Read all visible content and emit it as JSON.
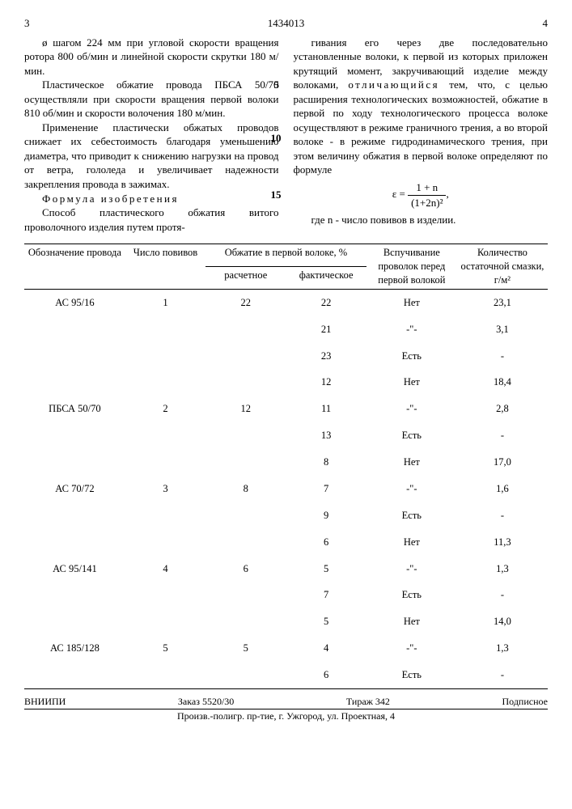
{
  "header": {
    "page_left": "3",
    "doc_number": "1434013",
    "page_right": "4"
  },
  "left_col": {
    "p1": "ø шагом 224 мм при угловой скорости вращения ротора 800 об/мин и линейной скорости скрутки 180 м/мин.",
    "p2": "Пластическое обжатие провода ПБСА 50/70 осуществляли при скорости вращения первой волоки 810 об/мин и скорости волочения 180 м/мин.",
    "p3": "Применение пластически обжатых проводов снижает их себестоимость благодаря уменьшению диаметра, что приводит к снижению нагрузки на провод от ветра, гололеда и увеличивает надежности закрепления провода в зажимах.",
    "formula_title": "Формула изобретения",
    "p4": "Способ пластического обжатия витого проволочного изделия путем протя-"
  },
  "right_col": {
    "p1a": "гивания его через две последовательно установленные волоки, к первой из которых приложен крутящий момент, закручивающий изделие между волоками, ",
    "p1_spaced": "отличающийся",
    "p1b": " тем, что, с целью расширения технологических возможностей, обжатие в первой по ходу технологического процесса волоке осуществляют в режиме граничного трения, а во второй волоке - в режиме гидродинамического трения, при этом величину обжатия в первой волоке определяют по формуле",
    "formula_lhs": "ε =",
    "formula_num": "1 + n",
    "formula_den": "(1+2n)²",
    "formula_tail": ",",
    "p2": "где n - число повивов в изделии."
  },
  "markers": {
    "m5": "5",
    "m10": "10",
    "m15": "15"
  },
  "table": {
    "hdr": {
      "c1": "Обозначение провода",
      "c2": "Число повивов",
      "c3": "Обжатие в первой волоке, %",
      "c3a": "расчетное",
      "c3b": "фактическое",
      "c4": "Вспучивание проволок перед первой волокой",
      "c5": "Количество остаточной смазки, г/м²"
    },
    "rows": [
      {
        "a": "АС 95/16",
        "b": "1",
        "c": "22",
        "d": "22",
        "e": "Нет",
        "f": "23,1"
      },
      {
        "a": "",
        "b": "",
        "c": "",
        "d": "21",
        "e": "-\"-",
        "f": "3,1"
      },
      {
        "a": "",
        "b": "",
        "c": "",
        "d": "23",
        "e": "Есть",
        "f": "-"
      },
      {
        "a": "",
        "b": "",
        "c": "",
        "d": "12",
        "e": "Нет",
        "f": "18,4"
      },
      {
        "a": "ПБСА 50/70",
        "b": "2",
        "c": "12",
        "d": "11",
        "e": "-\"-",
        "f": "2,8"
      },
      {
        "a": "",
        "b": "",
        "c": "",
        "d": "13",
        "e": "Есть",
        "f": "-"
      },
      {
        "a": "",
        "b": "",
        "c": "",
        "d": "8",
        "e": "Нет",
        "f": "17,0"
      },
      {
        "a": "АС 70/72",
        "b": "3",
        "c": "8",
        "d": "7",
        "e": "-\"-",
        "f": "1,6"
      },
      {
        "a": "",
        "b": "",
        "c": "",
        "d": "9",
        "e": "Есть",
        "f": "-"
      },
      {
        "a": "",
        "b": "",
        "c": "",
        "d": "6",
        "e": "Нет",
        "f": "11,3"
      },
      {
        "a": "АС 95/141",
        "b": "4",
        "c": "6",
        "d": "5",
        "e": "-\"-",
        "f": "1,3"
      },
      {
        "a": "",
        "b": "",
        "c": "",
        "d": "7",
        "e": "Есть",
        "f": "-"
      },
      {
        "a": "",
        "b": "",
        "c": "",
        "d": "5",
        "e": "Нет",
        "f": "14,0"
      },
      {
        "a": "АС 185/128",
        "b": "5",
        "c": "5",
        "d": "4",
        "e": "-\"-",
        "f": "1,3"
      },
      {
        "a": "",
        "b": "",
        "c": "",
        "d": "6",
        "e": "Есть",
        "f": "-"
      }
    ]
  },
  "footer": {
    "org": "ВНИИПИ",
    "order": "Заказ 5520/30",
    "tirage": "Тираж 342",
    "sub": "Подписное",
    "addr": "Произв.-полигр. пр-тие, г. Ужгород, ул. Проектная, 4"
  }
}
